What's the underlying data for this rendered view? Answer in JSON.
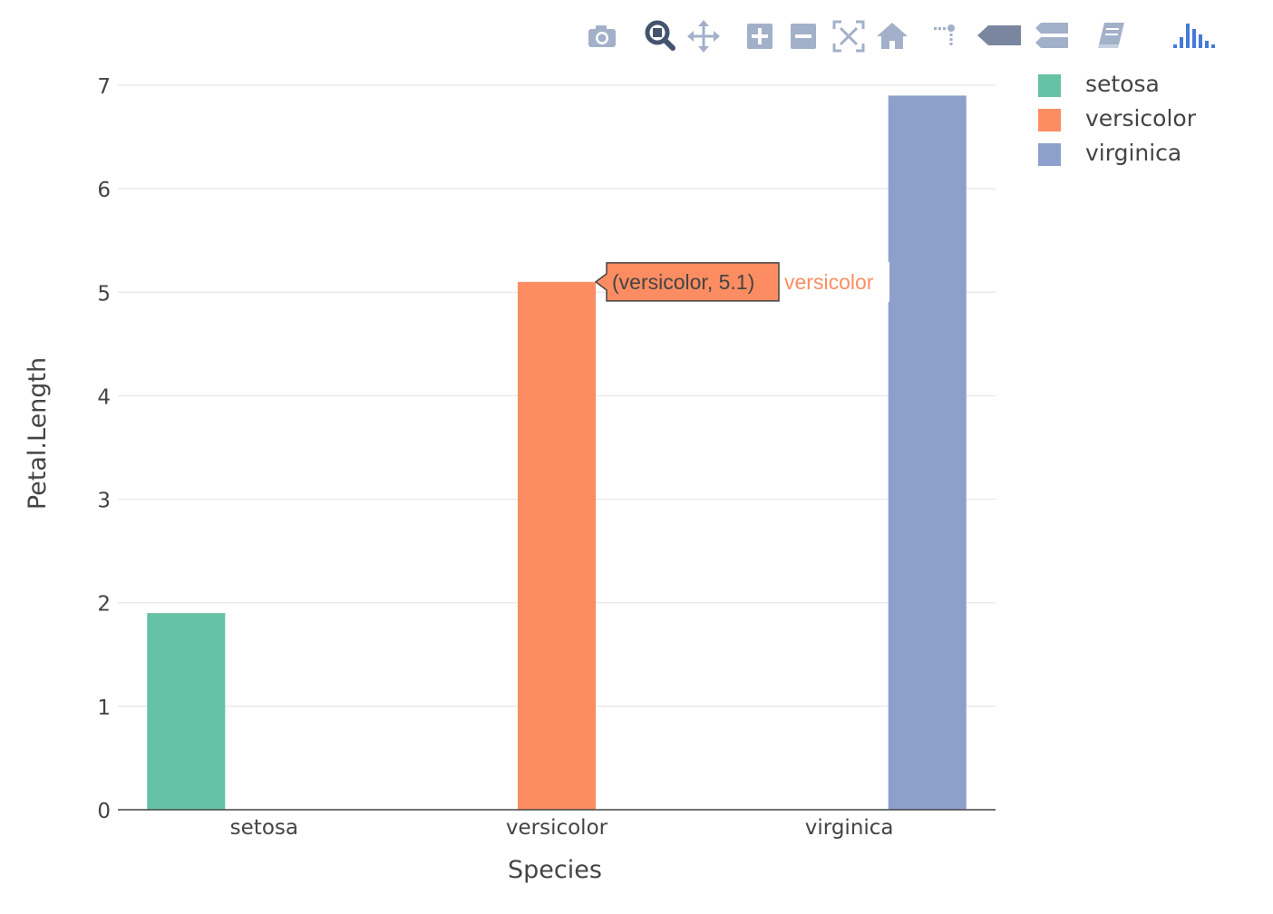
{
  "chart_data": {
    "type": "bar",
    "categories": [
      "setosa",
      "versicolor",
      "virginica"
    ],
    "series": [
      {
        "name": "setosa",
        "color": "#66c2a5",
        "values": [
          1.9,
          null,
          null
        ]
      },
      {
        "name": "versicolor",
        "color": "#fc8d62",
        "values": [
          null,
          5.1,
          null
        ]
      },
      {
        "name": "virginica",
        "color": "#8da0cb",
        "values": [
          null,
          null,
          6.9
        ]
      }
    ],
    "xlabel": "Species",
    "ylabel": "Petal.Length",
    "ylim": [
      0,
      7
    ],
    "yticks": [
      "0",
      "1",
      "2",
      "3",
      "4",
      "5",
      "6",
      "7"
    ],
    "grid": true,
    "legend_position": "top-right",
    "hover": {
      "series_index": 1,
      "category_index": 1,
      "text": "(versicolor, 5.1)",
      "name": "versicolor"
    }
  },
  "modebar": {
    "icons": [
      {
        "name": "camera-icon"
      },
      {
        "name": "zoom-icon"
      },
      {
        "name": "pan-icon"
      },
      {
        "name": "zoom-in-icon"
      },
      {
        "name": "zoom-out-icon"
      },
      {
        "name": "autoscale-icon"
      },
      {
        "name": "reset-axes-icon"
      },
      {
        "name": "toggle-spikelines-icon"
      },
      {
        "name": "hover-closest-icon"
      },
      {
        "name": "hover-compare-icon"
      },
      {
        "name": "edit-chart-icon"
      },
      {
        "name": "plotly-logo-icon"
      }
    ],
    "colors": {
      "icon": "#a3b0c9",
      "active": "#44546f",
      "logo": "#447adb"
    }
  }
}
